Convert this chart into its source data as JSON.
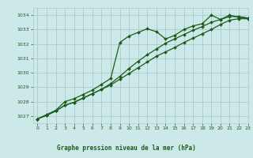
{
  "title": "Graphe pression niveau de la mer (hPa)",
  "bg_color": "#cce8e8",
  "grid_color": "#aacaca",
  "line_color": "#1a5c1a",
  "xlim": [
    -0.5,
    23
  ],
  "ylim": [
    1026.5,
    1034.5
  ],
  "yticks": [
    1027,
    1028,
    1029,
    1030,
    1031,
    1032,
    1033,
    1034
  ],
  "xticks": [
    0,
    1,
    2,
    3,
    4,
    5,
    6,
    7,
    8,
    9,
    10,
    11,
    12,
    13,
    14,
    15,
    16,
    17,
    18,
    19,
    20,
    21,
    22,
    23
  ],
  "series1_x": [
    0,
    1,
    2,
    3,
    4,
    5,
    6,
    7,
    8,
    9,
    10,
    11,
    12,
    13,
    14,
    15,
    16,
    17,
    18,
    19,
    20,
    21,
    22,
    23
  ],
  "series1_y": [
    1026.8,
    1027.1,
    1027.4,
    1028.0,
    1028.2,
    1028.5,
    1028.8,
    1029.2,
    1029.6,
    1032.1,
    1032.55,
    1032.8,
    1033.05,
    1032.85,
    1032.35,
    1032.6,
    1033.0,
    1033.25,
    1033.4,
    1034.0,
    1033.7,
    1034.0,
    1033.85,
    1033.8
  ],
  "series2_x": [
    0,
    1,
    2,
    3,
    4,
    5,
    6,
    7,
    8,
    9,
    10,
    11,
    12,
    13,
    14,
    15,
    16,
    17,
    18,
    19,
    20,
    21,
    22,
    23
  ],
  "series2_y": [
    1026.8,
    1027.05,
    1027.35,
    1027.75,
    1027.95,
    1028.25,
    1028.55,
    1028.85,
    1029.15,
    1029.55,
    1029.95,
    1030.35,
    1030.75,
    1031.15,
    1031.45,
    1031.75,
    1032.1,
    1032.4,
    1032.7,
    1033.0,
    1033.35,
    1033.65,
    1033.75,
    1033.75
  ],
  "series3_x": [
    0,
    1,
    2,
    3,
    4,
    5,
    6,
    7,
    8,
    9,
    10,
    11,
    12,
    13,
    14,
    15,
    16,
    17,
    18,
    19,
    20,
    21,
    22,
    23
  ],
  "series3_y": [
    1026.8,
    1027.05,
    1027.35,
    1027.75,
    1027.95,
    1028.25,
    1028.55,
    1028.85,
    1029.25,
    1029.75,
    1030.3,
    1030.8,
    1031.25,
    1031.65,
    1032.05,
    1032.35,
    1032.65,
    1032.95,
    1033.2,
    1033.5,
    1033.7,
    1033.9,
    1033.9,
    1033.8
  ]
}
